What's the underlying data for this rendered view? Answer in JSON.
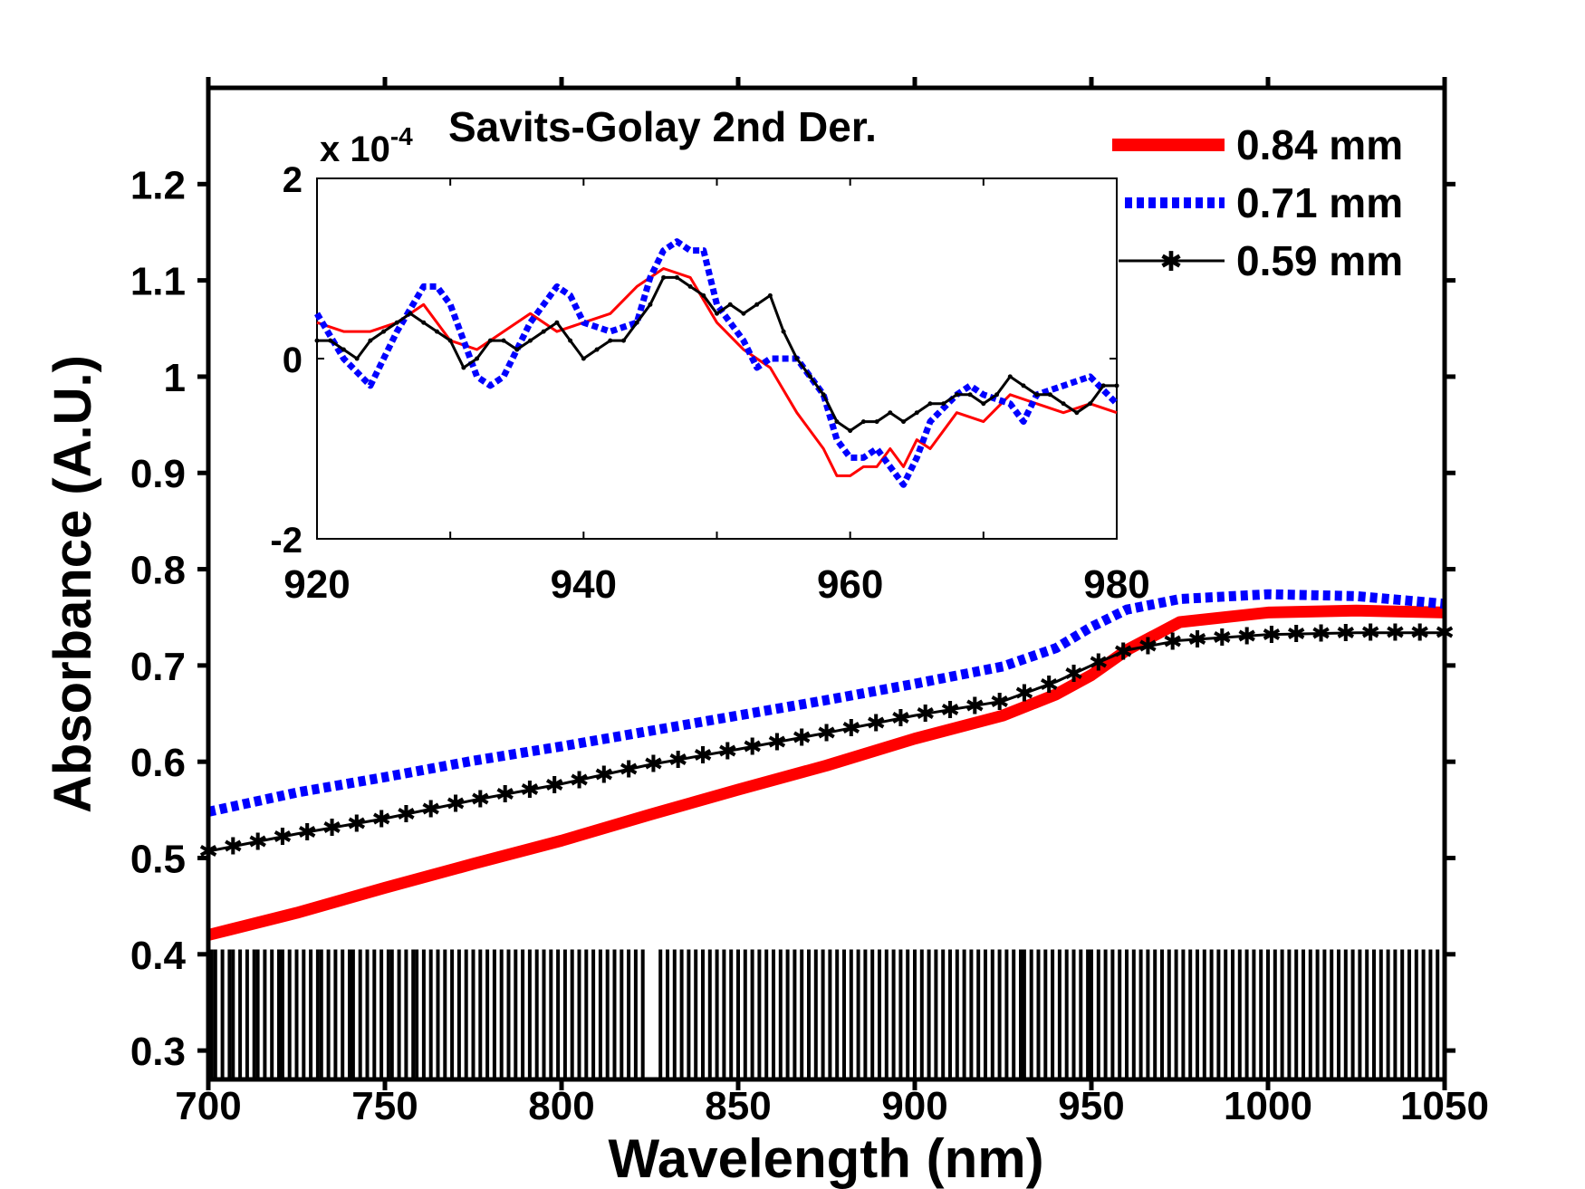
{
  "chart_data": [
    {
      "type": "line",
      "title": "",
      "xlabel": "Wavelength (nm)",
      "ylabel": "Absorbance (A.U.)",
      "xlim": [
        700,
        1050
      ],
      "ylim": [
        0.27,
        1.3
      ],
      "xticks": [
        "700",
        "750",
        "800",
        "850",
        "900",
        "950",
        "1000",
        "1050"
      ],
      "yticks": [
        "0.3",
        "0.4",
        "0.5",
        "0.6",
        "0.7",
        "0.8",
        "0.9",
        "1",
        "1.1",
        "1.2"
      ],
      "grid": false,
      "legend": "top-right",
      "series": [
        {
          "name": "0.84 mm",
          "color": "#ff0000",
          "style": "solid-thick",
          "x": [
            700,
            725,
            750,
            775,
            800,
            825,
            850,
            875,
            900,
            925,
            940,
            950,
            960,
            975,
            1000,
            1025,
            1050
          ],
          "y": [
            0.42,
            0.443,
            0.469,
            0.494,
            0.518,
            0.545,
            0.571,
            0.596,
            0.624,
            0.648,
            0.67,
            0.69,
            0.716,
            0.745,
            0.755,
            0.757,
            0.755
          ]
        },
        {
          "name": "0.71 mm",
          "color": "#0000ff",
          "style": "dotted",
          "x": [
            700,
            725,
            750,
            775,
            800,
            825,
            850,
            875,
            900,
            925,
            940,
            950,
            960,
            975,
            1000,
            1025,
            1050
          ],
          "y": [
            0.548,
            0.568,
            0.584,
            0.601,
            0.616,
            0.632,
            0.648,
            0.664,
            0.681,
            0.699,
            0.718,
            0.74,
            0.758,
            0.769,
            0.774,
            0.772,
            0.764
          ]
        },
        {
          "name": "0.59 mm",
          "color": "#000000",
          "style": "line-star",
          "x": [
            700,
            725,
            750,
            775,
            800,
            825,
            850,
            875,
            900,
            925,
            940,
            950,
            960,
            975,
            1000,
            1025,
            1050
          ],
          "y": [
            0.507,
            0.525,
            0.541,
            0.56,
            0.577,
            0.597,
            0.613,
            0.63,
            0.648,
            0.663,
            0.683,
            0.7,
            0.716,
            0.726,
            0.732,
            0.734,
            0.734
          ]
        }
      ],
      "band_wavelengths": [
        701,
        702,
        704,
        706,
        707,
        709,
        711,
        713,
        714,
        716,
        718,
        720,
        721,
        723,
        725,
        727,
        729,
        731,
        732,
        734,
        736,
        738,
        740,
        741,
        743,
        745,
        747,
        749,
        751,
        752,
        754,
        756,
        758,
        759,
        761,
        763,
        765,
        767,
        769,
        771,
        773,
        775,
        777,
        779,
        781,
        783,
        785,
        787,
        789,
        791,
        793,
        795,
        797,
        799,
        801,
        803,
        805,
        807,
        809,
        811,
        813,
        815,
        817,
        819,
        821,
        823,
        828,
        830,
        832,
        834,
        836,
        838,
        840,
        842,
        844,
        846,
        848,
        850,
        852,
        854,
        856,
        858,
        860,
        862,
        864,
        866,
        868,
        870,
        872,
        874,
        876,
        878,
        880,
        882,
        884,
        886,
        888,
        890,
        892,
        894,
        896,
        898,
        900,
        902,
        904,
        906,
        908,
        910,
        912,
        914,
        916,
        918,
        920,
        922,
        924,
        926,
        928,
        930,
        931,
        933,
        935,
        937,
        939,
        941,
        943,
        945,
        947,
        949,
        950,
        952,
        954,
        956,
        958,
        960,
        962,
        964,
        966,
        968,
        970,
        972,
        974,
        976,
        978,
        980,
        982,
        984,
        986,
        988,
        990,
        992,
        994,
        996,
        998,
        1000,
        1002,
        1004,
        1006,
        1008,
        1010,
        1012,
        1014,
        1016,
        1018,
        1020,
        1022,
        1024,
        1026,
        1028,
        1030,
        1032,
        1034,
        1036,
        1038,
        1040,
        1042,
        1044,
        1046,
        1048
      ]
    },
    {
      "type": "line",
      "title": "Savits-Golay 2nd Der.",
      "y_scale_label": "x 10",
      "y_scale_exponent": "-4",
      "xlim": [
        920,
        980
      ],
      "ylim": [
        -2,
        2
      ],
      "xticks": [
        "920",
        "940",
        "960",
        "980"
      ],
      "yticks": [
        "-2",
        "0",
        "2"
      ],
      "grid": false,
      "series": [
        {
          "name": "0.84 mm",
          "color": "#ff0000",
          "x": [
            920,
            922,
            924,
            926,
            928,
            930,
            932,
            934,
            936,
            938,
            940,
            942,
            944,
            946,
            948,
            950,
            952,
            954,
            956,
            958,
            959,
            960,
            961,
            962,
            963,
            964,
            965,
            966,
            968,
            970,
            972,
            974,
            976,
            978,
            980
          ],
          "y": [
            0.4,
            0.3,
            0.3,
            0.4,
            0.6,
            0.2,
            0.1,
            0.3,
            0.5,
            0.3,
            0.4,
            0.5,
            0.8,
            1.0,
            0.9,
            0.4,
            0.1,
            -0.1,
            -0.6,
            -1.0,
            -1.3,
            -1.3,
            -1.2,
            -1.2,
            -1.0,
            -1.2,
            -0.9,
            -1.0,
            -0.6,
            -0.7,
            -0.4,
            -0.5,
            -0.6,
            -0.5,
            -0.6
          ]
        },
        {
          "name": "0.71 mm",
          "color": "#0000ff",
          "x": [
            920,
            922,
            924,
            926,
            928,
            929,
            930,
            932,
            933,
            934,
            936,
            938,
            939,
            940,
            942,
            944,
            945,
            946,
            947,
            948,
            949,
            950,
            952,
            953,
            954,
            956,
            958,
            959,
            960,
            961,
            962,
            963,
            964,
            965,
            966,
            968,
            969,
            970,
            972,
            973,
            974,
            976,
            978,
            980
          ],
          "y": [
            0.5,
            0.0,
            -0.3,
            0.3,
            0.8,
            0.8,
            0.6,
            -0.2,
            -0.3,
            -0.2,
            0.4,
            0.8,
            0.7,
            0.4,
            0.3,
            0.4,
            0.9,
            1.2,
            1.3,
            1.2,
            1.2,
            0.6,
            0.2,
            -0.1,
            0.0,
            0.0,
            -0.4,
            -0.9,
            -1.1,
            -1.1,
            -1.0,
            -1.2,
            -1.4,
            -1.1,
            -0.7,
            -0.4,
            -0.3,
            -0.4,
            -0.5,
            -0.7,
            -0.4,
            -0.3,
            -0.2,
            -0.5
          ]
        },
        {
          "name": "0.59 mm",
          "color": "#000000",
          "x": [
            920,
            921,
            922,
            923,
            924,
            925,
            926,
            927,
            928,
            929,
            930,
            931,
            932,
            933,
            934,
            935,
            936,
            937,
            938,
            939,
            940,
            941,
            942,
            943,
            944,
            945,
            946,
            947,
            948,
            949,
            950,
            951,
            952,
            953,
            954,
            955,
            956,
            957,
            958,
            959,
            960,
            961,
            962,
            963,
            964,
            965,
            966,
            967,
            968,
            969,
            970,
            971,
            972,
            973,
            974,
            975,
            976,
            977,
            978,
            979,
            980
          ],
          "y": [
            0.2,
            0.2,
            0.1,
            0.0,
            0.2,
            0.3,
            0.4,
            0.5,
            0.4,
            0.3,
            0.2,
            -0.1,
            0.0,
            0.2,
            0.2,
            0.1,
            0.2,
            0.3,
            0.4,
            0.2,
            0.0,
            0.1,
            0.2,
            0.2,
            0.4,
            0.6,
            0.9,
            0.9,
            0.8,
            0.7,
            0.5,
            0.6,
            0.5,
            0.6,
            0.7,
            0.3,
            0.0,
            -0.2,
            -0.4,
            -0.7,
            -0.8,
            -0.7,
            -0.7,
            -0.6,
            -0.7,
            -0.6,
            -0.5,
            -0.5,
            -0.4,
            -0.4,
            -0.5,
            -0.4,
            -0.2,
            -0.3,
            -0.4,
            -0.4,
            -0.5,
            -0.6,
            -0.5,
            -0.3,
            -0.3
          ]
        }
      ]
    }
  ]
}
